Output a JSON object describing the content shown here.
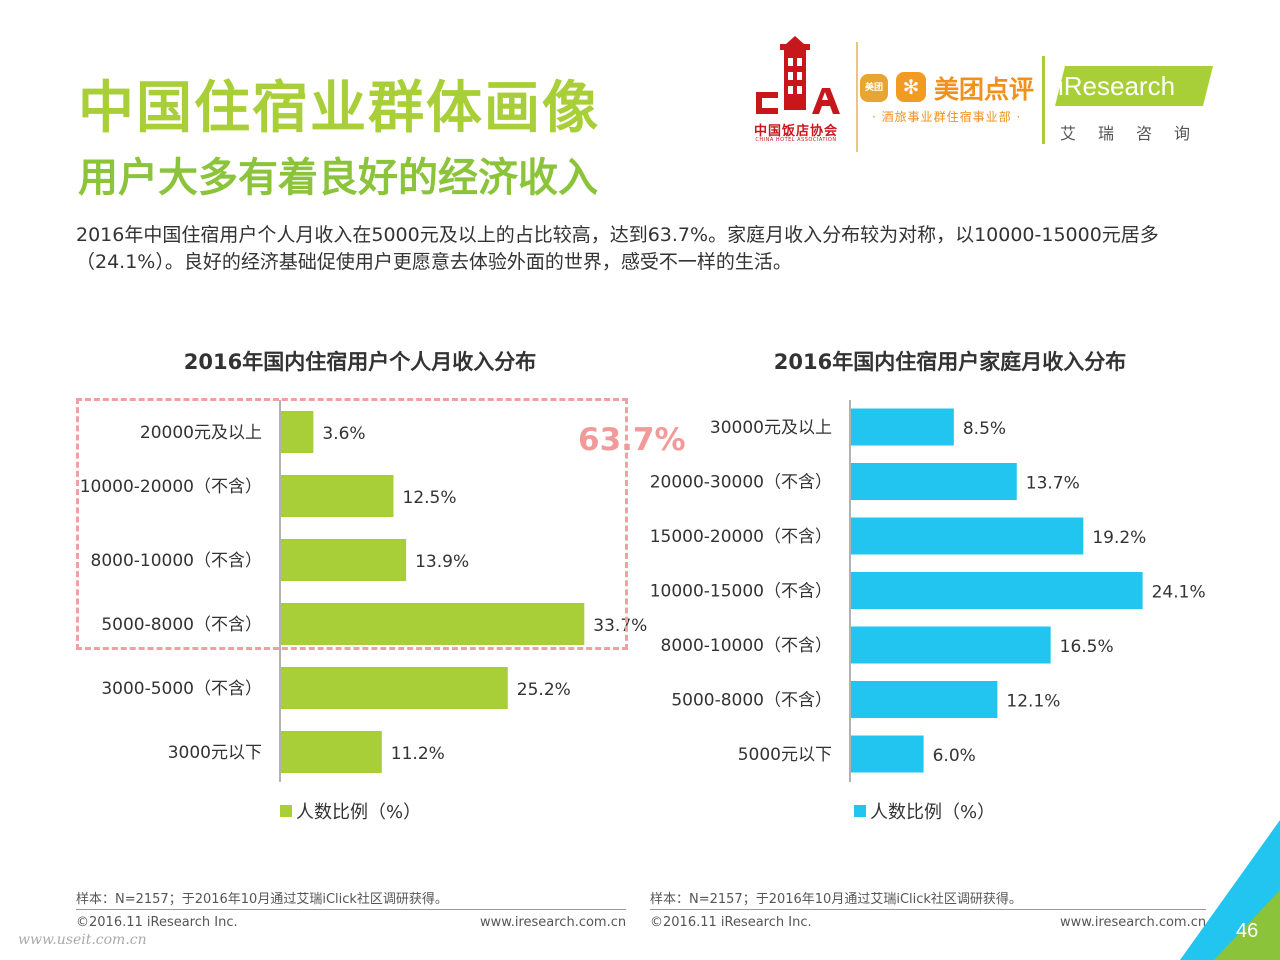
{
  "header": {
    "title": "中国住宿业群体画像",
    "subtitle": "用户大多有着良好的经济收入",
    "description": "2016年中国住宿用户个人月收入在5000元及以上的占比较高，达到63.7%。家庭月收入分布较为对称，以10000-15000元居多（24.1%）。良好的经济基础促使用户更愿意去体验外面的世界，感受不一样的生活。"
  },
  "logos": {
    "cha_cn": "中国饭店协会",
    "cha_en": "CHINA HOTEL ASSOCIATION",
    "meituan_badge": "美团",
    "meituan_name": "美团点评",
    "meituan_sub": "· 酒旅事业群住宿事业部 ·",
    "iresearch_name": "iResearch",
    "iresearch_cn": "艾瑞咨询"
  },
  "callout": {
    "text": "63.7%",
    "color": "#f29a9a"
  },
  "chart_data": [
    {
      "type": "bar",
      "orientation": "horizontal",
      "title": "2016年国内住宿用户个人月收入分布",
      "categories": [
        "20000元及以上",
        "10000-20000（不含）",
        "8000-10000（不含）",
        "5000-8000（不含）",
        "3000-5000（不含）",
        "3000元以下"
      ],
      "series": [
        {
          "name": "人数比例（%）",
          "values": [
            3.6,
            12.5,
            13.9,
            33.7,
            25.2,
            11.2
          ],
          "color": "#a9cf38"
        }
      ],
      "data_labels": [
        "3.6%",
        "12.5%",
        "13.9%",
        "33.7%",
        "25.2%",
        "11.2%"
      ],
      "xlim": [
        0,
        40
      ],
      "grid": false,
      "legend": "bottom"
    },
    {
      "type": "bar",
      "orientation": "horizontal",
      "title": "2016年国内住宿用户家庭月收入分布",
      "categories": [
        "30000元及以上",
        "20000-30000（不含）",
        "15000-20000（不含）",
        "10000-15000（不含）",
        "8000-10000（不含）",
        "5000-8000（不含）",
        "5000元以下"
      ],
      "series": [
        {
          "name": "人数比例（%）",
          "values": [
            8.5,
            13.7,
            19.2,
            24.1,
            16.5,
            12.1,
            6.0
          ],
          "color": "#21c5ef"
        }
      ],
      "data_labels": [
        "8.5%",
        "13.7%",
        "19.2%",
        "24.1%",
        "16.5%",
        "12.1%",
        "6.0%"
      ],
      "xlim": [
        0,
        30
      ],
      "grid": false,
      "legend": "bottom"
    }
  ],
  "footer": {
    "sample_left": "样本：N=2157；于2016年10月通过艾瑞iClick社区调研获得。",
    "sample_right": "样本：N=2157；于2016年10月通过艾瑞iClick社区调研获得。",
    "copyright_left": "©2016.11 iResearch Inc.",
    "url_left": "www.iresearch.com.cn",
    "copyright_right": "©2016.11 iResearch Inc.",
    "url_right": "www.iresearch.com.cn",
    "page_number": "46",
    "watermark": "www.useit.com.cn"
  },
  "colors": {
    "title_green": "#a9cf38",
    "subtitle_green": "#8bc33a",
    "bar_green": "#a9cf38",
    "bar_blue": "#21c5ef",
    "corner_blue": "#21c5ef",
    "corner_green": "#8bc33a"
  }
}
